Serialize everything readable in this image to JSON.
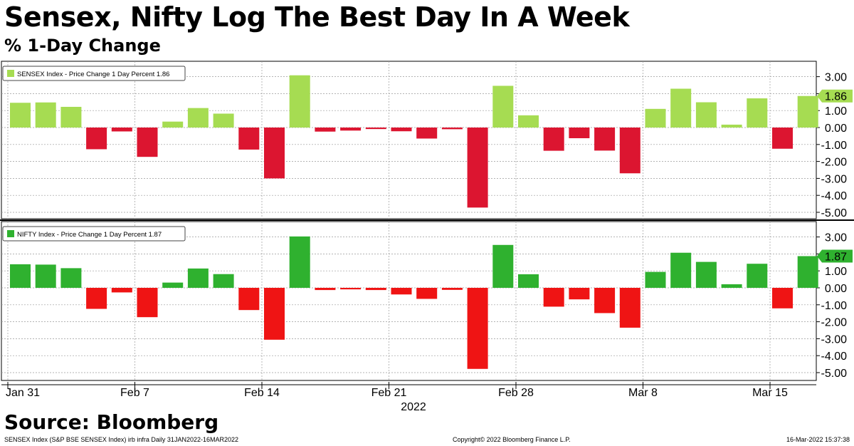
{
  "header": {
    "title": "Sensex, Nifty Log The Best Day In A Week",
    "subtitle": "% 1-Day Change"
  },
  "footer": {
    "source": "Source: Bloomberg",
    "left_note": "SENSEX Index (S&P BSE SENSEX Index) irb infra  Daily 31JAN2022-16MAR2022",
    "copyright": "Copyright© 2022 Bloomberg Finance L.P.",
    "timestamp": "16-Mar-2022 15:37:38"
  },
  "colors": {
    "sensex_up": "#a6dc52",
    "nifty_up": "#2fb12f",
    "sensex_down": "#dc1530",
    "nifty_down": "#ef1414"
  },
  "chart_data": {
    "type": "bar",
    "x_tick_labels": [
      {
        "index": 0,
        "label": "Jan 31"
      },
      {
        "index": 5,
        "label": "Feb 7"
      },
      {
        "index": 10,
        "label": "Feb 14"
      },
      {
        "index": 15,
        "label": "Feb 21"
      },
      {
        "index": 20,
        "label": "Feb 28"
      },
      {
        "index": 25,
        "label": "Mar 8"
      },
      {
        "index": 30,
        "label": "Mar 15"
      }
    ],
    "year_label": "2022",
    "yticks": [
      "3.00",
      "2.00",
      "1.00",
      "0.00",
      "-1.00",
      "-2.00",
      "-3.00",
      "-4.00",
      "-5.00"
    ],
    "ylim": [
      -5.6,
      3.6
    ],
    "grid": true,
    "panels": [
      {
        "legend": "SENSEX Index - Price Change 1 Day Percent 1.86",
        "last_value_label": "1.86",
        "values": [
          1.46,
          1.48,
          1.22,
          -1.28,
          -0.23,
          -1.73,
          0.35,
          1.15,
          0.82,
          -1.3,
          -3.0,
          3.08,
          -0.24,
          -0.18,
          -0.09,
          -0.22,
          -0.65,
          -0.1,
          -4.72,
          2.46,
          0.72,
          -1.37,
          -0.63,
          -1.36,
          -2.7,
          1.1,
          2.29,
          1.49,
          0.17,
          1.72,
          -1.25,
          1.86
        ]
      },
      {
        "legend": "NIFTY Index - Price Change 1 Day Percent 1.87",
        "last_value_label": "1.87",
        "values": [
          1.39,
          1.37,
          1.16,
          -1.24,
          -0.27,
          -1.73,
          0.31,
          1.14,
          0.81,
          -1.31,
          -3.06,
          3.03,
          -0.13,
          -0.09,
          -0.13,
          -0.39,
          -0.65,
          -0.12,
          -4.78,
          2.53,
          0.8,
          -1.11,
          -0.68,
          -1.49,
          -2.35,
          0.94,
          2.07,
          1.53,
          0.21,
          1.42,
          -1.21,
          1.87
        ]
      }
    ]
  }
}
